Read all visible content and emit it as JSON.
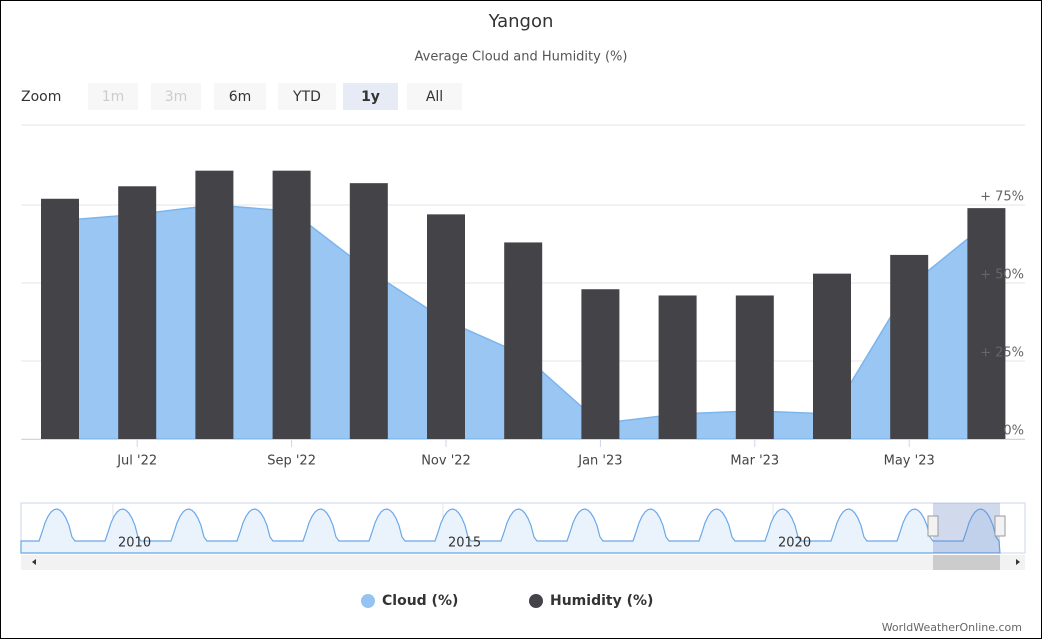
{
  "chart_data": {
    "type": "bar_area",
    "title": "Yangon",
    "subtitle": "Average Cloud and Humidity (%)",
    "zoom": {
      "label": "Zoom",
      "buttons": [
        "1m",
        "3m",
        "6m",
        "YTD",
        "1y",
        "All"
      ]
    },
    "categories": [
      null,
      "Jul '22",
      null,
      "Sep '22",
      null,
      "Nov '22",
      null,
      "Jan '23",
      null,
      "Mar '23",
      null,
      "May '23",
      null
    ],
    "series": [
      {
        "name": "Cloud (%)",
        "color": "#95c3f2",
        "kind": "area",
        "values": [
          70,
          72,
          75,
          73,
          54,
          38,
          27,
          5,
          8,
          9,
          8,
          49,
          69
        ]
      },
      {
        "name": "Humidity (%)",
        "color": "#434348",
        "kind": "column",
        "values": [
          77,
          81,
          86,
          86,
          82,
          72,
          63,
          48,
          46,
          46,
          53,
          59,
          74
        ]
      }
    ],
    "ylim": [
      0,
      100
    ],
    "yticks": [
      {
        "value": 0,
        "label": "0%"
      },
      {
        "value": 25,
        "label": "+ 25%"
      },
      {
        "value": 50,
        "label": "+ 50%"
      },
      {
        "value": 75,
        "label": "+ 75%"
      }
    ],
    "grid": true,
    "navigator": {
      "labels": [
        "2010",
        "2015",
        "2020"
      ]
    },
    "credits": "WorldWeatherOnline.com"
  }
}
